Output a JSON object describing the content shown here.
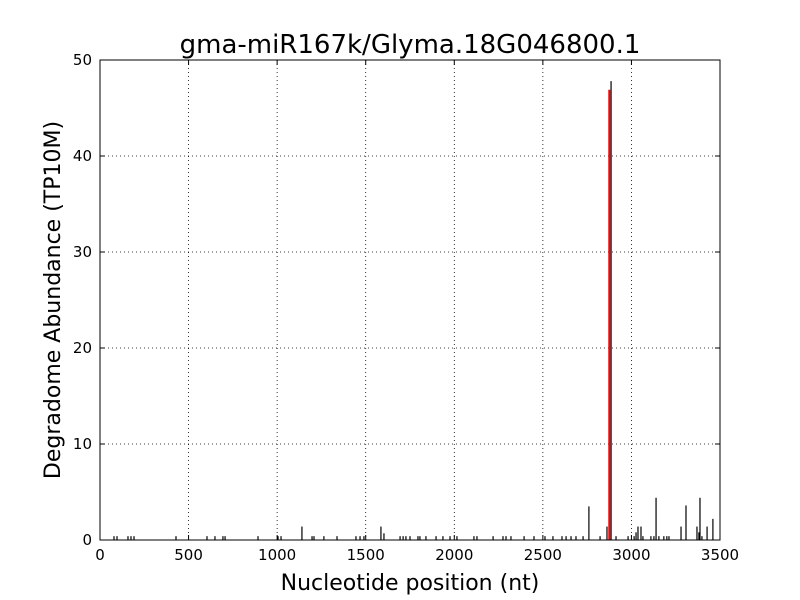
{
  "chart_data": {
    "type": "stem",
    "title": "gma-miR167k/Glyma.18G046800.1",
    "x_label": "Nucleotide position (nt)",
    "y_label": "Degradome Abundance (TP10M)",
    "xlim": [
      0,
      3500
    ],
    "ylim": [
      0,
      50
    ],
    "xticks": [
      0,
      500,
      1000,
      1500,
      2000,
      2500,
      3000,
      3500
    ],
    "yticks": [
      0,
      10,
      20,
      30,
      40,
      50
    ],
    "grid": true,
    "series": [
      {
        "color": "#000000",
        "x": [
          79,
          96,
          158,
          175,
          192,
          429,
          604,
          649,
          694,
          706,
          892,
          1005,
          1022,
          1140,
          1197,
          1208,
          1264,
          1338,
          1445,
          1468,
          1490,
          1586,
          1603,
          1694,
          1711,
          1727,
          1750,
          1795,
          1806,
          1840,
          1897,
          1936,
          1976,
          2015,
          2111,
          2128,
          2219,
          2275,
          2292,
          2320,
          2394,
          2450,
          2512,
          2557,
          2608,
          2631,
          2659,
          2687,
          2727,
          2760,
          2823,
          2862,
          2885,
          2913,
          2981,
          3015,
          3026,
          3037,
          3054,
          3065,
          3110,
          3127,
          3139,
          3155,
          3183,
          3200,
          3212,
          3280,
          3308,
          3370,
          3381,
          3387,
          3398,
          3427,
          3460
        ],
        "values": [
          0.4,
          0.4,
          0.4,
          0.4,
          0.4,
          0.4,
          0.4,
          0.4,
          0.4,
          0.4,
          0.4,
          0.4,
          0.4,
          1.4,
          0.4,
          0.4,
          0.4,
          0.4,
          0.4,
          0.4,
          0.4,
          1.4,
          0.7,
          0.4,
          0.4,
          0.4,
          0.4,
          0.4,
          0.4,
          0.4,
          0.4,
          0.4,
          0.4,
          0.4,
          0.4,
          0.4,
          0.4,
          0.4,
          0.4,
          0.4,
          0.4,
          0.4,
          0.4,
          0.4,
          0.4,
          0.4,
          0.4,
          0.4,
          0.4,
          3.5,
          0.4,
          1.4,
          47.8,
          0.4,
          0.4,
          0.4,
          0.8,
          1.4,
          1.4,
          0.4,
          0.4,
          0.4,
          4.4,
          0.4,
          0.4,
          0.4,
          0.4,
          1.4,
          3.6,
          1.4,
          0.8,
          4.4,
          0.4,
          1.4,
          2.2
        ]
      },
      {
        "color": "#ff0000",
        "x": [
          2875
        ],
        "values": [
          46.9
        ]
      }
    ]
  }
}
